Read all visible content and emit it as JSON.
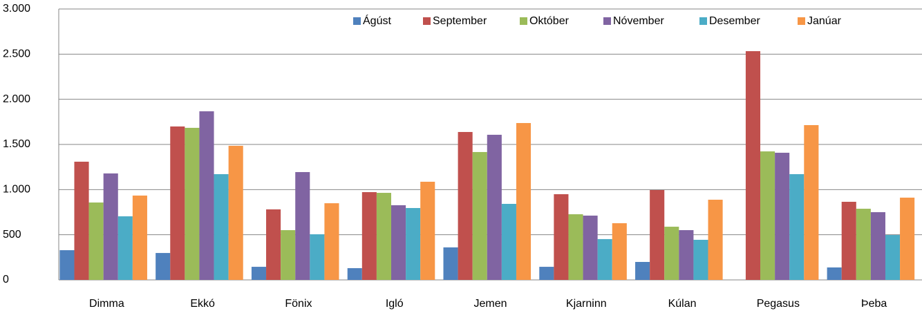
{
  "chart_data": {
    "type": "bar",
    "categories": [
      "Dimma",
      "Ekkó",
      "Fönix",
      "Igló",
      "Jemen",
      "Kjarninn",
      "Kúlan",
      "Pegasus",
      "Þeba"
    ],
    "series": [
      {
        "name": "Ágúst",
        "color": "#4f81bd",
        "values": [
          329,
          298,
          145,
          130,
          360,
          145,
          199,
          null,
          138
        ]
      },
      {
        "name": "September",
        "color": "#c0504d",
        "values": [
          1309,
          1699,
          781,
          972,
          1638,
          949,
          995,
          2533,
          865
        ]
      },
      {
        "name": "Október",
        "color": "#9bbb59",
        "values": [
          857,
          1684,
          551,
          964,
          1416,
          727,
          589,
          1423,
          788
        ]
      },
      {
        "name": "Nóvember",
        "color": "#8064a2",
        "values": [
          1179,
          1867,
          1194,
          827,
          1607,
          712,
          551,
          1408,
          750
        ]
      },
      {
        "name": "Desember",
        "color": "#4bacc6",
        "values": [
          704,
          1171,
          505,
          796,
          842,
          452,
          444,
          1171,
          497
        ]
      },
      {
        "name": "Janúar",
        "color": "#f79646",
        "values": [
          934,
          1485,
          849,
          1087,
          1737,
          628,
          888,
          1714,
          911
        ]
      }
    ],
    "ylim": [
      0,
      3000
    ],
    "yticks": [
      0,
      500,
      {
        "value": 1000,
        "label": "1.000"
      },
      {
        "value": 1500,
        "label": "1.500"
      },
      {
        "value": 2000,
        "label": "2.000"
      },
      {
        "value": 2500,
        "label": "2.500"
      },
      {
        "value": 3000,
        "label": "3.000"
      }
    ],
    "grid": true,
    "legend": "top"
  }
}
